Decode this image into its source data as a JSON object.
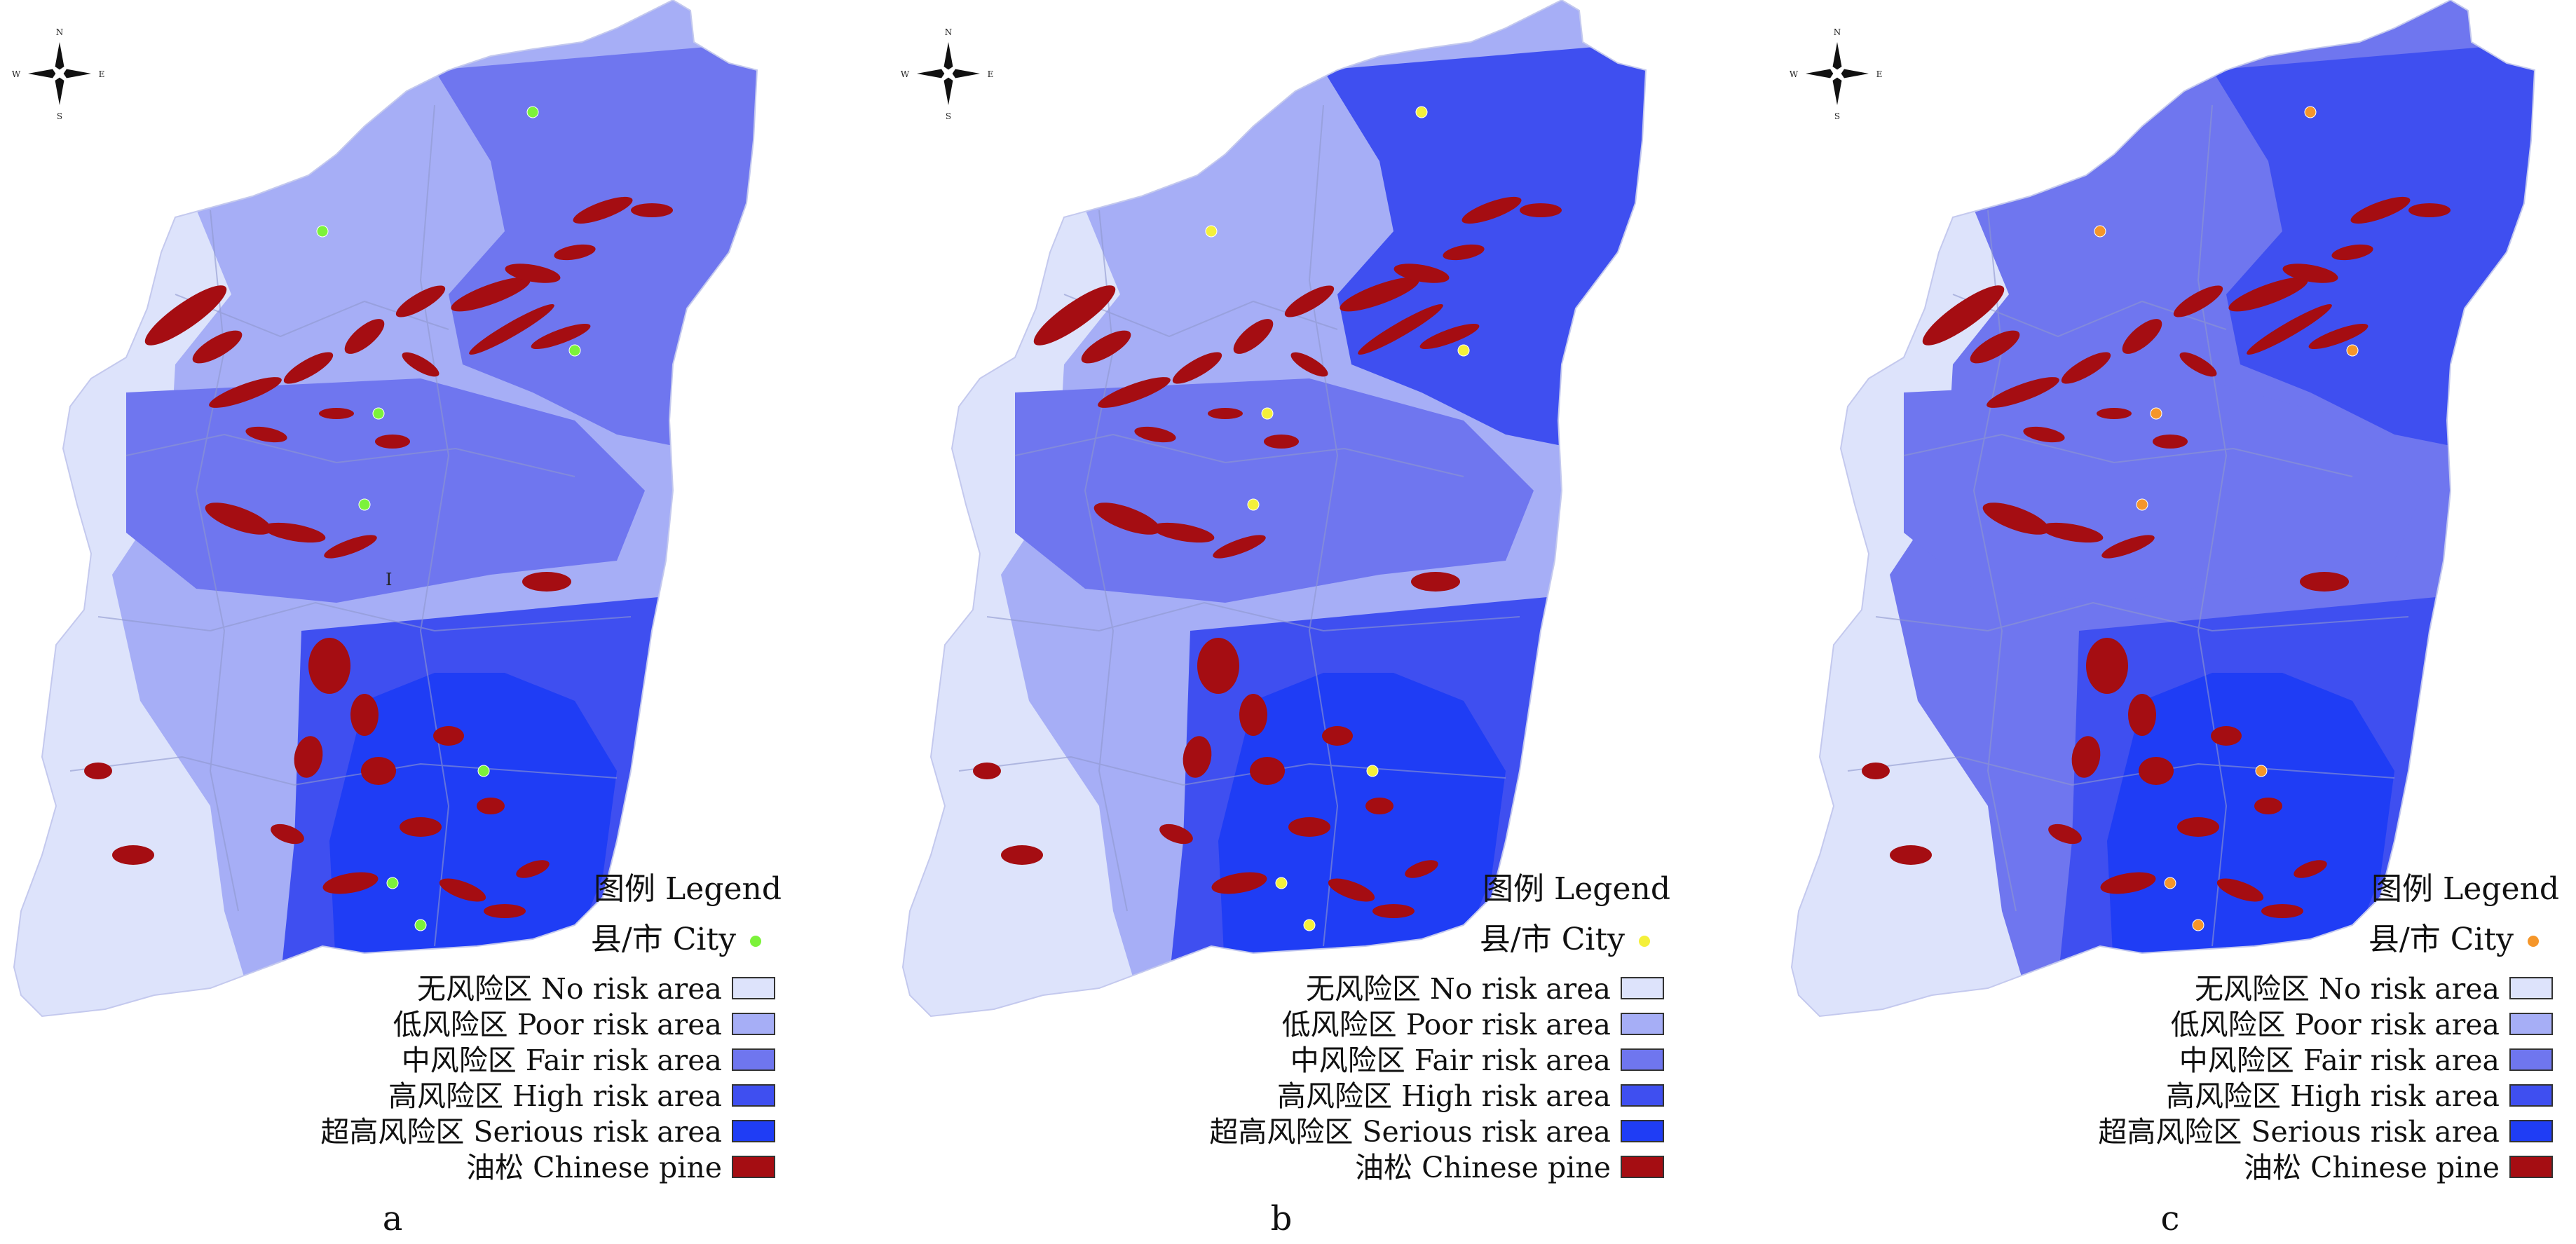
{
  "legend": {
    "title": "图例 Legend",
    "city_label": "县/市 City",
    "items": [
      {
        "key": "no",
        "label": "无风险区 No risk area",
        "color": "#dde3fb"
      },
      {
        "key": "poor",
        "label": "低风险区 Poor risk area",
        "color": "#a6aef6"
      },
      {
        "key": "fair",
        "label": "中风险区 Fair risk area",
        "color": "#6f76ef"
      },
      {
        "key": "high",
        "label": "高风险区 High risk area",
        "color": "#3f4ff0"
      },
      {
        "key": "serious",
        "label": "超高风险区 Serious risk area",
        "color": "#1f3df5"
      },
      {
        "key": "pine",
        "label": "油松 Chinese pine",
        "color": "#a50d12"
      }
    ]
  },
  "panels": [
    {
      "id": "a",
      "caption": "a",
      "city_color": "#7cf23a",
      "region_label": "I",
      "zones": {
        "base": "poor",
        "extras": [
          {
            "shape": "westband",
            "level": "no"
          },
          {
            "shape": "north",
            "level": "fair"
          },
          {
            "shape": "central",
            "level": "fair"
          },
          {
            "shape": "south",
            "level": "high"
          },
          {
            "shape": "south_inner",
            "level": "serious"
          }
        ]
      }
    },
    {
      "id": "b",
      "caption": "b",
      "city_color": "#f4f03a",
      "region_label": "",
      "zones": {
        "base": "poor",
        "extras": [
          {
            "shape": "westband",
            "level": "no"
          },
          {
            "shape": "north",
            "level": "high"
          },
          {
            "shape": "central",
            "level": "fair"
          },
          {
            "shape": "south",
            "level": "high"
          },
          {
            "shape": "south_inner",
            "level": "serious"
          }
        ]
      }
    },
    {
      "id": "c",
      "caption": "c",
      "city_color": "#f5962a",
      "region_label": "",
      "zones": {
        "base": "fair",
        "extras": [
          {
            "shape": "westband",
            "level": "no"
          },
          {
            "shape": "north",
            "level": "high"
          },
          {
            "shape": "central",
            "level": "fair"
          },
          {
            "shape": "south",
            "level": "high"
          },
          {
            "shape": "south_inner",
            "level": "serious"
          }
        ]
      }
    }
  ],
  "compass": {
    "n": "N",
    "s": "S",
    "e": "E",
    "w": "W"
  }
}
